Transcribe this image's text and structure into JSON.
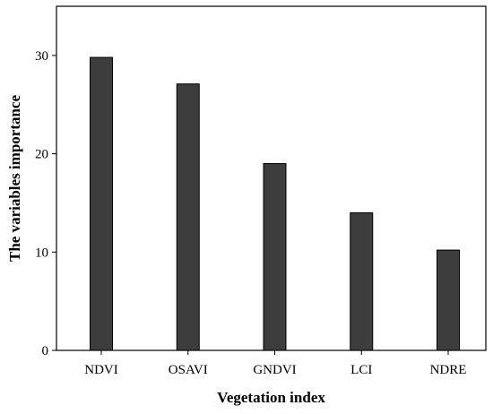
{
  "chart_data": {
    "type": "bar",
    "categories": [
      "NDVI",
      "OSAVI",
      "GNDVI",
      "LCI",
      "NDRE"
    ],
    "values": [
      29.8,
      27.1,
      19.0,
      14.0,
      10.2
    ],
    "title": "",
    "xlabel": "Vegetation index",
    "ylabel": "The variables importance",
    "ylim": [
      0,
      35
    ],
    "yticks": [
      0,
      10,
      20,
      30
    ],
    "grid": false,
    "legend": "none",
    "bar_color": "#3d3d3d",
    "bar_edge_color": "#000000"
  }
}
